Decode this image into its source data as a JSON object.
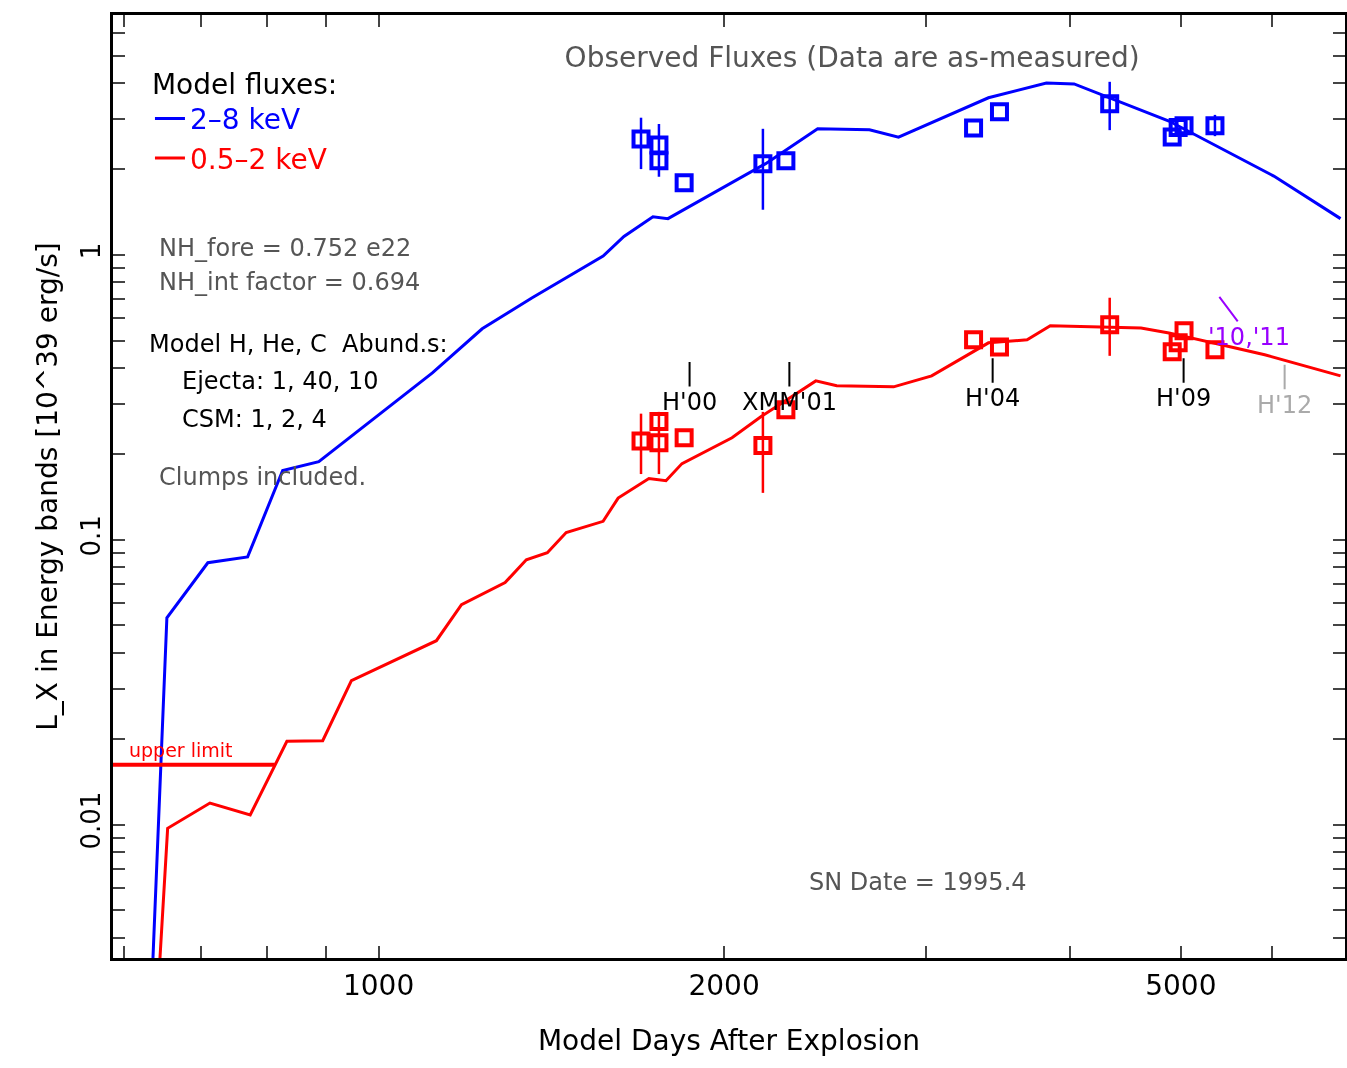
{
  "chart_data": {
    "type": "line",
    "title": "Observed Fluxes (Data are as-measured)",
    "xlabel": "Model Days After Explosion",
    "ylabel": "L_X in Energy bands [10^39 erg/s]",
    "legend_title": "Model fluxes:",
    "legend": "top left",
    "log": "xy",
    "grid": false,
    "xlim": [
      587,
      6950
    ],
    "ylim": [
      0.0034,
      6.95
    ],
    "xticks": [
      {
        "value": 600,
        "label": null
      },
      {
        "value": 700,
        "label": null
      },
      {
        "value": 800,
        "label": null
      },
      {
        "value": 900,
        "label": null
      },
      1000,
      2000,
      {
        "value": 3000,
        "label": null
      },
      {
        "value": 4000,
        "label": null
      },
      5000,
      {
        "value": 6000,
        "label": null
      }
    ],
    "yticks": [
      {
        "value": 0.004,
        "label": null
      },
      {
        "value": 0.005,
        "label": null
      },
      {
        "value": 0.006,
        "label": null
      },
      {
        "value": 0.007,
        "label": null
      },
      {
        "value": 0.008,
        "label": null
      },
      {
        "value": 0.009,
        "label": null
      },
      0.01,
      {
        "value": 0.02,
        "label": null
      },
      {
        "value": 0.03,
        "label": null
      },
      {
        "value": 0.04,
        "label": null
      },
      {
        "value": 0.05,
        "label": null
      },
      {
        "value": 0.06,
        "label": null
      },
      {
        "value": 0.07,
        "label": null
      },
      {
        "value": 0.08,
        "label": null
      },
      {
        "value": 0.09,
        "label": null
      },
      0.1,
      {
        "value": 0.2,
        "label": null
      },
      {
        "value": 0.3,
        "label": null
      },
      {
        "value": 0.4,
        "label": null
      },
      {
        "value": 0.5,
        "label": null
      },
      {
        "value": 0.6,
        "label": null
      },
      {
        "value": 0.7,
        "label": null
      },
      {
        "value": 0.8,
        "label": null
      },
      {
        "value": 0.9,
        "label": null
      },
      1,
      {
        "value": 2,
        "label": null
      },
      {
        "value": 3,
        "label": null
      },
      {
        "value": 4,
        "label": null
      },
      {
        "value": 5,
        "label": null
      },
      {
        "value": 6,
        "label": null
      }
    ],
    "series": [
      {
        "name": "2–8 keV",
        "color": "#0000ff",
        "marker": "none",
        "x": [
          636,
          654,
          710,
          769,
          825,
          887,
          1114,
          1231,
          1361,
          1569,
          1636,
          1734,
          1787,
          2174,
          2413,
          2677,
          2838,
          3399,
          3818,
          4036,
          4882,
          6025,
          6888
        ],
        "values": [
          0.0034,
          0.0532,
          0.083,
          0.087,
          0.175,
          0.188,
          0.385,
          0.55,
          0.707,
          0.99,
          1.16,
          1.36,
          1.34,
          2.09,
          2.77,
          2.75,
          2.59,
          3.56,
          4.01,
          3.98,
          2.95,
          1.89,
          1.34
        ]
      },
      {
        "name": "0.5–2 keV",
        "color": "#ff0000",
        "marker": "none",
        "x": [
          645,
          655,
          713,
          773,
          832,
          894,
          947,
          1123,
          1181,
          1289,
          1345,
          1403,
          1457,
          1569,
          1617,
          1720,
          1780,
          1838,
          2032,
          2153,
          2404,
          2507,
          2810,
          3033,
          3399,
          3673,
          3848,
          4616,
          4882,
          5530,
          5916,
          6888
        ],
        "values": [
          0.0034,
          0.0097,
          0.0119,
          0.0108,
          0.0196,
          0.0197,
          0.032,
          0.0442,
          0.0592,
          0.0707,
          0.085,
          0.09,
          0.106,
          0.116,
          0.14,
          0.164,
          0.161,
          0.185,
          0.228,
          0.27,
          0.361,
          0.347,
          0.344,
          0.376,
          0.491,
          0.503,
          0.564,
          0.554,
          0.532,
          0.475,
          0.446,
          0.376
        ]
      },
      {
        "type": "scatter",
        "color": "#0000ff",
        "marker": "square",
        "x": [
          1693,
          1755,
          1755,
          1846,
          2162,
          2264,
          3299,
          3475,
          4335,
          4914,
          4973,
          5032,
          5354
        ],
        "values": [
          2.55,
          2.43,
          2.14,
          1.79,
          2.09,
          2.14,
          2.79,
          3.18,
          3.39,
          2.59,
          2.8,
          2.84,
          2.84
        ],
        "errors": [
          [
            2.0,
            3.03
          ],
          [
            1.88,
            2.88
          ],
          null,
          null,
          [
            1.44,
            2.77
          ],
          null,
          null,
          null,
          [
            2.74,
            4.05
          ],
          null,
          null,
          null,
          [
            2.61,
            3.1
          ]
        ]
      },
      {
        "type": "scatter",
        "color": "#ff0000",
        "marker": "square",
        "x": [
          1693,
          1755,
          1755,
          1846,
          2162,
          2264,
          3299,
          3475,
          4335,
          4914,
          4973,
          5032,
          5354
        ],
        "values": [
          0.222,
          0.26,
          0.219,
          0.228,
          0.214,
          0.286,
          0.503,
          0.475,
          0.568,
          0.457,
          0.491,
          0.541,
          0.464
        ],
        "errors": [
          [
            0.17,
            0.277
          ],
          [
            0.17,
            0.281
          ],
          null,
          null,
          [
            0.146,
            0.281
          ],
          null,
          null,
          null,
          [
            0.442,
            0.707
          ],
          null,
          null,
          null,
          null
        ]
      },
      {
        "type": "line",
        "color": "#ff0000",
        "marker": "none",
        "x": [
          587,
          812
        ],
        "values": [
          0.0162,
          0.0162
        ]
      }
    ],
    "annotations": [
      "NH_fore = 0.752 e22",
      "NH_int factor = 0.694",
      "Model H, He, C  Abund.s:",
      "Ejecta: 1, 40, 10",
      "CSM: 1, 2, 4",
      "Clumps included.",
      "SN Date = 1995.4",
      {
        "text": "upper limit",
        "x": 673,
        "y": 0.0162
      },
      "H'00",
      "XMM'01",
      "H'04",
      "H'09",
      "'10,'11",
      "H'12"
    ]
  }
}
